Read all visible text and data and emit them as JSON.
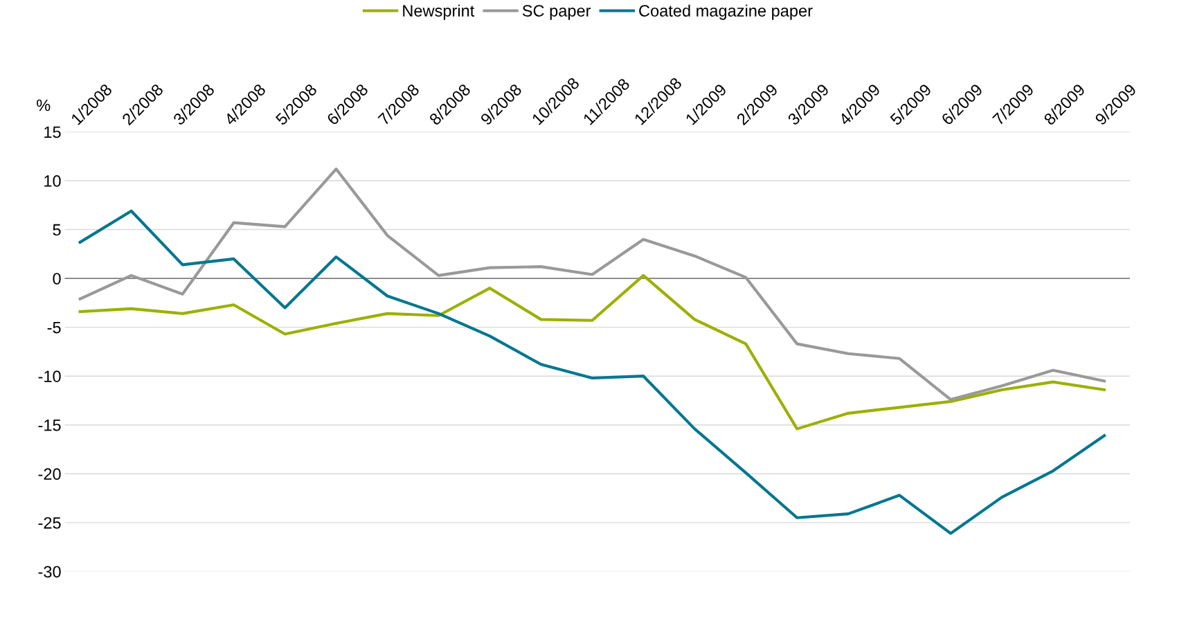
{
  "chart_data": {
    "type": "line",
    "ylabel": "%",
    "categories": [
      "1/2008",
      "2/2008",
      "3/2008",
      "4/2008",
      "5/2008",
      "6/2008",
      "7/2008",
      "8/2008",
      "9/2008",
      "10/2008",
      "11/2008",
      "12/2008",
      "1/2009",
      "2/2009",
      "3/2009",
      "4/2009",
      "5/2009",
      "6/2009",
      "7/2009",
      "8/2009",
      "9/2009"
    ],
    "series": [
      {
        "name": "Newsprint",
        "color": "#9bb000",
        "values": [
          -3.4,
          -3.1,
          -3.6,
          -2.7,
          -5.7,
          -4.6,
          -3.6,
          -3.8,
          -1.0,
          -4.2,
          -4.3,
          0.3,
          -4.2,
          -6.7,
          -15.4,
          -13.8,
          -13.2,
          -12.6,
          -11.4,
          -10.6,
          -11.4
        ]
      },
      {
        "name": "SC paper",
        "color": "#999999",
        "values": [
          -2.1,
          0.3,
          -1.6,
          5.7,
          5.3,
          11.2,
          4.4,
          0.3,
          1.1,
          1.2,
          0.4,
          4.0,
          2.3,
          0.1,
          -6.7,
          -7.7,
          -8.2,
          -12.4,
          -11.0,
          -9.4,
          -10.5
        ]
      },
      {
        "name": "Coated magazine paper",
        "color": "#00778f",
        "values": [
          3.7,
          6.9,
          1.4,
          2.0,
          -3.0,
          2.2,
          -1.8,
          -3.6,
          -5.9,
          -8.8,
          -10.2,
          -10.0,
          -15.4,
          -19.9,
          -24.5,
          -24.1,
          -22.2,
          -26.1,
          -22.4,
          -19.7,
          -16.1
        ]
      }
    ],
    "ylim": [
      -30,
      15
    ],
    "yticks": [
      -30,
      -25,
      -20,
      -15,
      -10,
      -5,
      0,
      5,
      10,
      15
    ],
    "grid": "y",
    "legend": "top",
    "marker": "none",
    "line_style": "solid",
    "ref_lines": [
      {
        "axis": "y",
        "value": 0,
        "color": "#808080"
      }
    ]
  }
}
